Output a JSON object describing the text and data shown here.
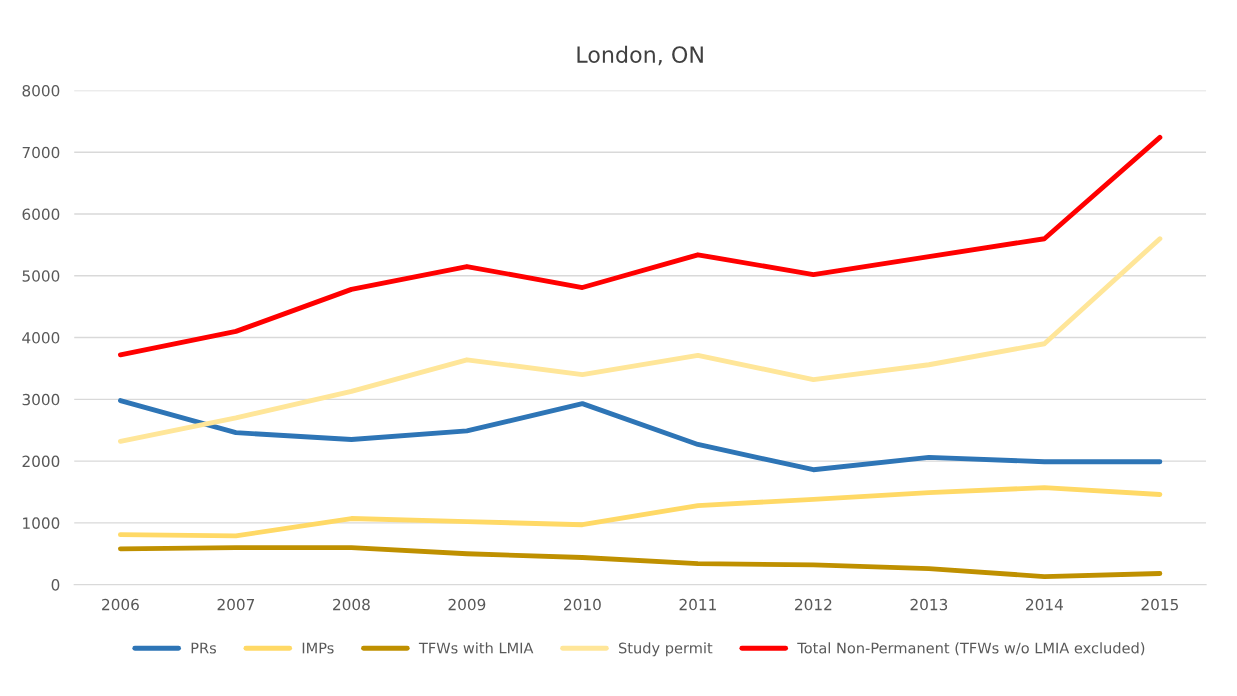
{
  "chart_data": {
    "type": "line",
    "title": "London, ON",
    "categories": [
      "2006",
      "2007",
      "2008",
      "2009",
      "2010",
      "2011",
      "2012",
      "2013",
      "2014",
      "2015"
    ],
    "series": [
      {
        "name": "PRs",
        "color": "#2e75b6",
        "values": [
          2980,
          2460,
          2350,
          2490,
          2930,
          2270,
          1860,
          2060,
          1990,
          1990
        ]
      },
      {
        "name": "IMPs",
        "color": "#ffd966",
        "values": [
          810,
          790,
          1070,
          1020,
          970,
          1280,
          1380,
          1490,
          1570,
          1460
        ]
      },
      {
        "name": "TFWs with LMIA",
        "color": "#bf9000",
        "values": [
          580,
          600,
          600,
          500,
          440,
          340,
          320,
          260,
          130,
          180
        ]
      },
      {
        "name": "Study permit",
        "color": "#ffe699",
        "values": [
          2320,
          2700,
          3130,
          3640,
          3400,
          3710,
          3320,
          3560,
          3900,
          5600
        ]
      },
      {
        "name": "Total Non-Permanent (TFWs w/o LMIA excluded)",
        "color": "#ff0000",
        "values": [
          3720,
          4100,
          4780,
          5150,
          4810,
          5340,
          5020,
          5310,
          5600,
          7240
        ]
      }
    ],
    "ylim": [
      0,
      8000
    ],
    "yticks": [
      0,
      1000,
      2000,
      3000,
      4000,
      5000,
      6000,
      7000,
      8000
    ],
    "grid": "y",
    "legend": "bottom",
    "marker": "none",
    "line_style": "solid"
  }
}
